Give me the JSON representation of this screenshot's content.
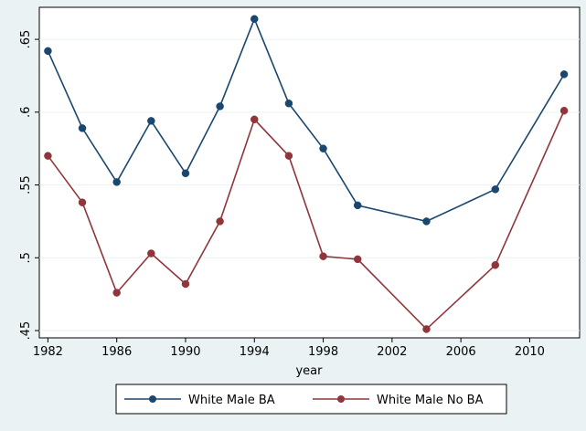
{
  "chart_data": {
    "type": "line",
    "title": "",
    "xlabel": "year",
    "ylabel": "",
    "x": [
      1982,
      1984,
      1986,
      1988,
      1990,
      1992,
      1994,
      1996,
      1998,
      2000,
      2004,
      2008,
      2012
    ],
    "xlim": [
      1981.5,
      2012.9
    ],
    "ylim": [
      0.445,
      0.672
    ],
    "x_ticks": [
      1982,
      1986,
      1990,
      1994,
      1998,
      2002,
      2006,
      2010
    ],
    "x_tick_labels": [
      "1982",
      "1986",
      "1990",
      "1994",
      "1998",
      "2002",
      "2006",
      "2010"
    ],
    "y_ticks": [
      0.45,
      0.5,
      0.55,
      0.6,
      0.65
    ],
    "y_tick_labels": [
      ".45",
      ".5",
      ".55",
      ".6",
      ".65"
    ],
    "grid": "horizontal",
    "legend_position": "bottom",
    "series": [
      {
        "name": "White Male BA",
        "color": "#1a476f",
        "values": [
          0.642,
          0.589,
          0.552,
          0.594,
          0.558,
          0.604,
          0.664,
          0.606,
          0.575,
          0.536,
          0.525,
          0.547,
          0.626
        ]
      },
      {
        "name": "White Male No BA",
        "color": "#90353b",
        "values": [
          0.57,
          0.538,
          0.476,
          0.503,
          0.482,
          0.525,
          0.595,
          0.57,
          0.501,
          0.499,
          0.451,
          0.495,
          0.601
        ]
      }
    ]
  }
}
